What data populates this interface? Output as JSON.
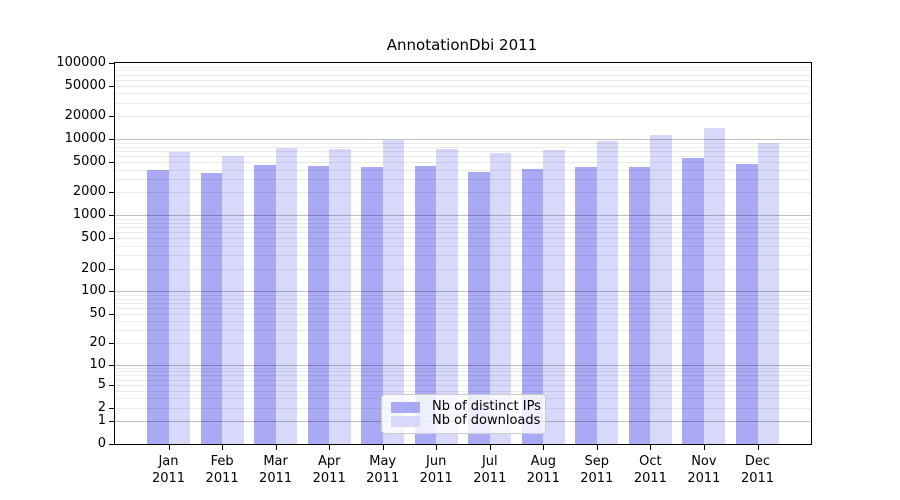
{
  "title": "AnnotationDbi 2011",
  "chart_data": {
    "type": "bar",
    "title": "AnnotationDbi 2011",
    "scale": "pseudo-log (log1p)",
    "categories": [
      "Jan",
      "Feb",
      "Mar",
      "Apr",
      "May",
      "Jun",
      "Jul",
      "Aug",
      "Sep",
      "Oct",
      "Nov",
      "Dec"
    ],
    "year": "2011",
    "series": [
      {
        "name": "Nb of distinct IPs",
        "color": "#a9a9f4",
        "values": [
          3900,
          3600,
          4580,
          4400,
          4310,
          4400,
          3730,
          4020,
          4350,
          4320,
          5690,
          4790
        ]
      },
      {
        "name": "Nb of downloads",
        "color": "#d8d8fa",
        "values": [
          6700,
          6050,
          7700,
          7450,
          9650,
          7400,
          6600,
          7150,
          9450,
          11200,
          14000,
          8900
        ]
      }
    ],
    "y_ticks": [
      0,
      1,
      2,
      5,
      10,
      20,
      50,
      100,
      200,
      500,
      1000,
      2000,
      5000,
      10000,
      20000,
      50000,
      100000
    ],
    "ylim": [
      0,
      100000
    ],
    "xlabel": "",
    "ylabel": "",
    "grid": true,
    "legend_position": "lower center"
  },
  "colors": {
    "background": "#ffffff",
    "bar_distinct_ips": "#a9a9f4",
    "bar_downloads": "#d8d8fa",
    "grid_major": "#c6c6c6",
    "grid_minor": "#ebebeb",
    "axis": "#000000",
    "legend_border": "#cccccc"
  }
}
